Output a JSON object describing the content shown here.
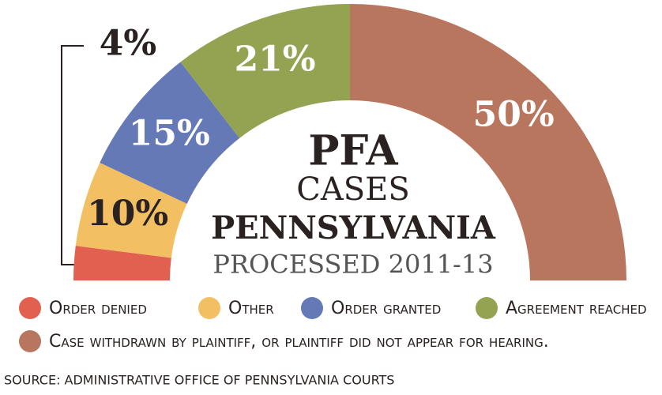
{
  "chart_data": {
    "type": "semi-donut",
    "title_lines": [
      "PFA",
      "CASES",
      "PENNSYLVANIA",
      "PROCESSED 2011-13"
    ],
    "categories": [
      "Order denied",
      "Other",
      "Order granted",
      "Agreement reached",
      "Case withdrawn by plaintiff, or plaintiff did not appear for hearing."
    ],
    "values": [
      4,
      10,
      15,
      21,
      50
    ],
    "value_labels": [
      "4%",
      "10%",
      "15%",
      "21%",
      "50%"
    ],
    "colors": [
      "#e2604f",
      "#f3bf63",
      "#6679b7",
      "#93a352",
      "#b9765f"
    ],
    "label_colors": [
      "#2a2220",
      "#2a2220",
      "#ffffff",
      "#ffffff",
      "#ffffff"
    ],
    "source": "SOURCE:  ADMINISTRATIVE OFFICE OF PENNSYLVANIA COURTS"
  }
}
